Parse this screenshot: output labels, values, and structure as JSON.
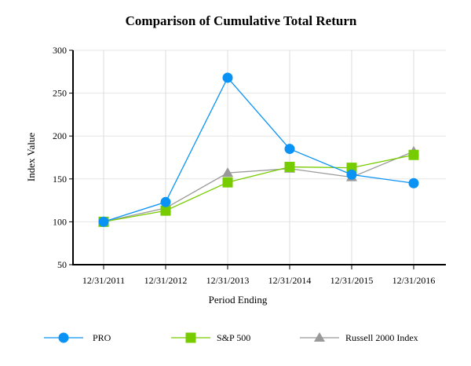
{
  "chart_data": {
    "type": "line",
    "title": "Comparison of Cumulative Total Return",
    "xlabel": "Period Ending",
    "ylabel": "Index Value",
    "ylim": [
      50,
      300
    ],
    "yticks": [
      50,
      100,
      150,
      200,
      250,
      300
    ],
    "grid": true,
    "legend_position": "bottom",
    "categories": [
      "12/31/2011",
      "12/31/2012",
      "12/31/2013",
      "12/31/2014",
      "12/31/2015",
      "12/31/2016"
    ],
    "series": [
      {
        "name": "PRO",
        "color": "#0a93f5",
        "marker": "circle",
        "values": [
          100,
          123,
          268,
          185,
          155,
          145
        ]
      },
      {
        "name": "S&P 500",
        "color": "#77cc00",
        "marker": "square",
        "values": [
          100,
          113,
          146,
          164,
          163,
          178
        ]
      },
      {
        "name": "Russell 2000 Index",
        "color": "#999999",
        "marker": "triangle",
        "values": [
          100,
          116,
          157,
          162,
          152,
          182
        ]
      }
    ]
  }
}
